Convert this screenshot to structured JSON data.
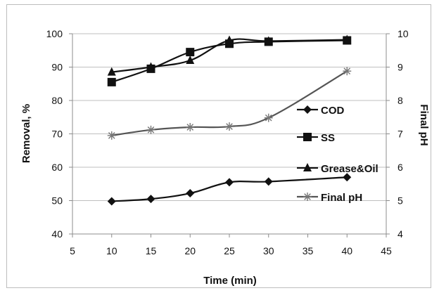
{
  "chart_data": {
    "type": "line",
    "title": "",
    "xlabel": "Time (min)",
    "ylabel": "Removal, %",
    "y2label": "Final pH",
    "xlim": [
      5,
      45
    ],
    "ylim": [
      40,
      100
    ],
    "y2lim": [
      4,
      10
    ],
    "xticks": [
      "5",
      "10",
      "15",
      "20",
      "25",
      "30",
      "35",
      "40",
      "45"
    ],
    "yticks": [
      "40",
      "50",
      "60",
      "70",
      "80",
      "90",
      "100"
    ],
    "y2ticks": [
      "4",
      "5",
      "6",
      "7",
      "8",
      "9",
      "10"
    ],
    "grid": true,
    "legend_position": "right",
    "series": [
      {
        "name": "COD",
        "marker": "diamond",
        "axis": "left",
        "x": [
          10,
          15,
          20,
          25,
          30,
          40
        ],
        "values": [
          49.8,
          50.5,
          52.2,
          55.5,
          55.7,
          57.0
        ]
      },
      {
        "name": "SS",
        "marker": "square",
        "axis": "left",
        "x": [
          10,
          15,
          20,
          25,
          30,
          40
        ],
        "values": [
          85.5,
          89.5,
          94.5,
          97.0,
          97.6,
          98.0
        ]
      },
      {
        "name": "Grease&Oil",
        "marker": "triangle",
        "axis": "left",
        "x": [
          10,
          15,
          20,
          25,
          30,
          40
        ],
        "values": [
          88.5,
          90.0,
          92.0,
          98.0,
          97.8,
          98.2
        ]
      },
      {
        "name": "Final pH",
        "marker": "star",
        "axis": "right",
        "x": [
          10,
          15,
          20,
          25,
          30,
          40
        ],
        "values": [
          6.95,
          7.12,
          7.2,
          7.22,
          7.48,
          8.88
        ]
      }
    ],
    "colors": {
      "line": "#111111",
      "grid": "#bfbfbf",
      "axis": "#8c8c8c"
    }
  }
}
